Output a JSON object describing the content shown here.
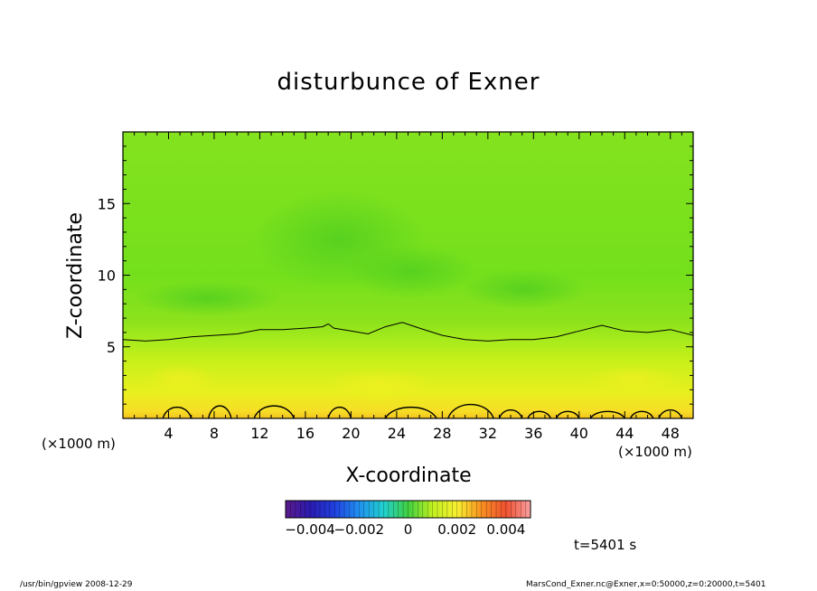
{
  "chart_data": {
    "type": "heatmap",
    "title": "disturbunce of Exner",
    "xlabel": "X-coordinate",
    "ylabel": "Z-coordinate",
    "x_unit": "(×1000 m)",
    "xlim": [
      0,
      50
    ],
    "ylim": [
      0,
      20
    ],
    "x_ticks": [
      4,
      8,
      12,
      16,
      20,
      24,
      28,
      32,
      36,
      40,
      44,
      48
    ],
    "y_ticks": [
      5,
      10,
      15
    ],
    "colorbar": {
      "range": [
        -0.005,
        0.005
      ],
      "tick_values": [
        -0.004,
        -0.002,
        0,
        0.002,
        0.004
      ],
      "tick_labels": [
        "−0.004",
        "−0.002",
        "0",
        "0.002",
        "0.004"
      ]
    },
    "contour_level_1": {
      "x": [
        0,
        2,
        4,
        6,
        8,
        10,
        12,
        14,
        16,
        17.5,
        18,
        18.5,
        20,
        21.5,
        23,
        24.5,
        26,
        28,
        30,
        32,
        34,
        36,
        38,
        40,
        42,
        44,
        46,
        48,
        50
      ],
      "z": [
        5.5,
        5.4,
        5.5,
        5.7,
        5.8,
        5.9,
        6.2,
        6.2,
        6.3,
        6.4,
        6.6,
        6.3,
        6.1,
        5.9,
        6.4,
        6.7,
        6.3,
        5.8,
        5.5,
        5.4,
        5.5,
        5.5,
        5.7,
        6.1,
        6.5,
        6.1,
        6.0,
        6.2,
        5.8
      ]
    },
    "contour_level_2": {
      "bumps": [
        [
          3.5,
          6,
          0.8
        ],
        [
          7.5,
          9.5,
          0.9
        ],
        [
          11.5,
          15,
          0.9
        ],
        [
          18,
          20,
          0.8
        ],
        [
          23,
          27.5,
          0.8
        ],
        [
          28.5,
          32.5,
          1.0
        ],
        [
          33,
          35,
          0.6
        ],
        [
          35.5,
          37.5,
          0.5
        ],
        [
          38,
          40,
          0.5
        ],
        [
          41,
          44,
          0.5
        ],
        [
          44.5,
          46.5,
          0.5
        ],
        [
          47,
          49,
          0.6
        ]
      ]
    }
  },
  "time_label": "t=5401 s",
  "footer_left": "/usr/bin/gpview   2008-12-29",
  "footer_right": "MarsCond_Exner.nc@Exner,x=0:50000,z=0:20000,t=5401"
}
